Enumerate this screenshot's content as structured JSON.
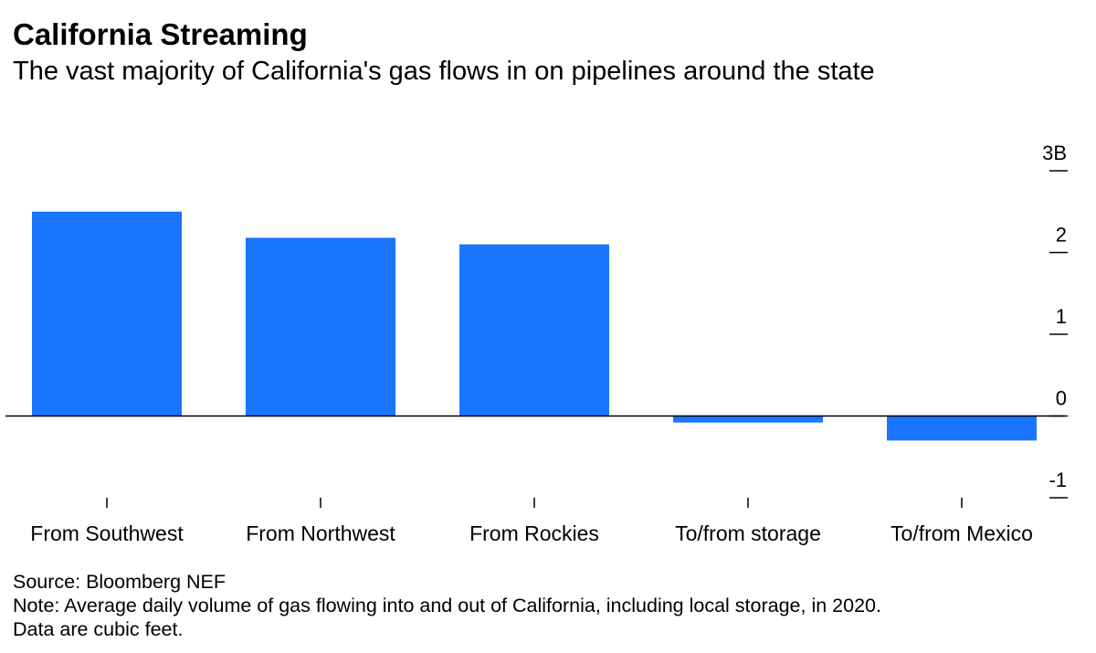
{
  "title": "California Streaming",
  "subtitle": "The vast majority of California's gas flows in on pipelines around the state",
  "source": "Source: Bloomberg NEF",
  "note_line1": "Note: Average daily volume of gas flowing into and out of California, including local storage, in 2020.",
  "note_line2": "Data are cubic feet.",
  "colors": {
    "bar": "#1a75ff",
    "axis": "#000000"
  },
  "chart_data": {
    "type": "bar",
    "title": "California Streaming",
    "subtitle": "The vast majority of California's gas flows in on pipelines around the state",
    "categories": [
      "From Southwest",
      "From Northwest",
      "From Rockies",
      "To/from storage",
      "To/from Mexico"
    ],
    "values": [
      2.5,
      2.18,
      2.1,
      -0.08,
      -0.3
    ],
    "ylim": [
      -1,
      3
    ],
    "yticks": [
      3,
      2,
      1,
      0,
      -1
    ],
    "ytick_labels": [
      "3B",
      "2",
      "1",
      "0",
      "-1"
    ],
    "axis_position": "right",
    "grid": false,
    "unit": "cubic feet"
  }
}
